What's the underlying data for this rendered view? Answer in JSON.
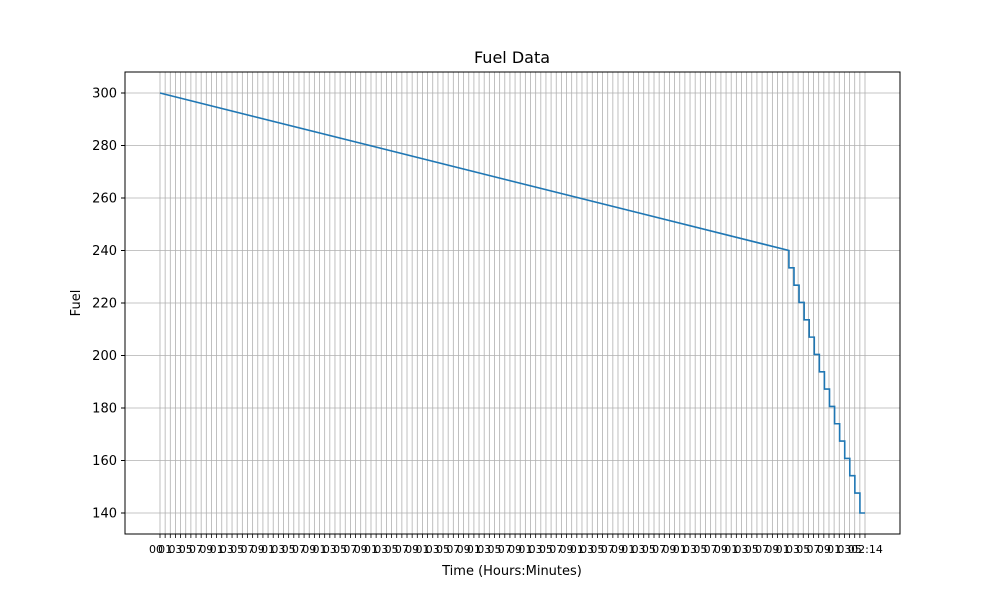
{
  "chart_data": {
    "type": "line",
    "title": "Fuel Data",
    "xlabel": "Time (Hours:Minutes)",
    "ylabel": "Fuel",
    "ylim": [
      132,
      308
    ],
    "yticks": [
      140,
      160,
      180,
      200,
      220,
      240,
      260,
      280,
      300
    ],
    "grid": true,
    "x_tick_count": 138,
    "x_first_label": "00",
    "x_last_label": "02:14",
    "series": [
      {
        "color": "#1f77b4",
        "step": true,
        "points": [
          {
            "i": 0,
            "y": 300
          },
          {
            "i": 124,
            "y": 240
          },
          {
            "i": 125,
            "y": 233.4
          },
          {
            "i": 126,
            "y": 226.8
          },
          {
            "i": 127,
            "y": 220.2
          },
          {
            "i": 128,
            "y": 213.6
          },
          {
            "i": 129,
            "y": 207.0
          },
          {
            "i": 130,
            "y": 200.4
          },
          {
            "i": 131,
            "y": 193.8
          },
          {
            "i": 132,
            "y": 187.2
          },
          {
            "i": 133,
            "y": 180.6
          },
          {
            "i": 134,
            "y": 174.0
          },
          {
            "i": 135,
            "y": 167.4
          },
          {
            "i": 136,
            "y": 160.8
          },
          {
            "i": 137,
            "y": 154.2
          },
          {
            "i": 138,
            "y": 147.6
          },
          {
            "i": 139,
            "y": 140
          }
        ]
      }
    ]
  }
}
